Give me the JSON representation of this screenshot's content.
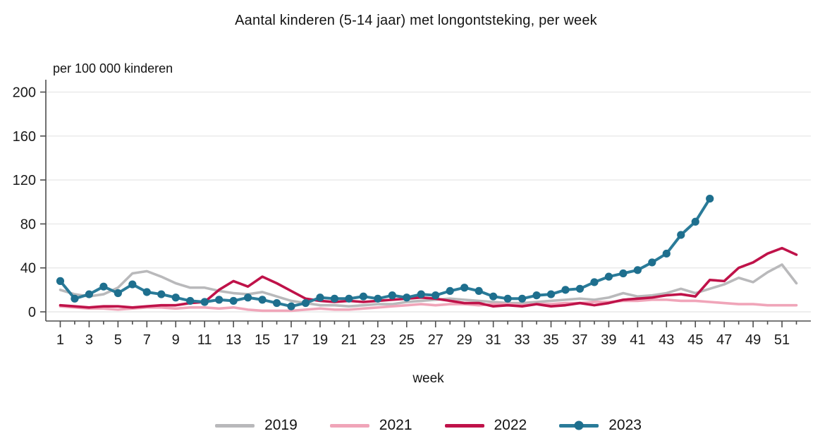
{
  "chart_data": {
    "type": "line",
    "title": "Aantal kinderen (5-14 jaar) met longontsteking, per week",
    "ylabel": "per 100 000 kinderen",
    "xlabel": "week",
    "ylim": [
      0,
      200
    ],
    "yticks": [
      0,
      40,
      80,
      120,
      160,
      200
    ],
    "xlim": [
      0,
      53
    ],
    "xticks": [
      1,
      3,
      5,
      7,
      9,
      11,
      13,
      15,
      17,
      19,
      21,
      23,
      25,
      27,
      29,
      31,
      33,
      35,
      37,
      39,
      41,
      43,
      45,
      47,
      49,
      51
    ],
    "grid": "horizontal",
    "legend_position": "bottom",
    "x": [
      1,
      2,
      3,
      4,
      5,
      6,
      7,
      8,
      9,
      10,
      11,
      12,
      13,
      14,
      15,
      16,
      17,
      18,
      19,
      20,
      21,
      22,
      23,
      24,
      25,
      26,
      27,
      28,
      29,
      30,
      31,
      32,
      33,
      34,
      35,
      36,
      37,
      38,
      39,
      40,
      41,
      42,
      43,
      44,
      45,
      46,
      47,
      48,
      49,
      50,
      51,
      52
    ],
    "series": [
      {
        "name": "2019",
        "color": "#b9b9bb",
        "values": [
          20,
          16,
          14,
          16,
          22,
          35,
          37,
          32,
          26,
          22,
          22,
          19,
          17,
          16,
          18,
          14,
          10,
          8,
          6,
          6,
          5,
          6,
          7,
          7,
          9,
          10,
          11,
          12,
          11,
          10,
          9,
          8,
          8,
          9,
          10,
          11,
          12,
          11,
          13,
          17,
          14,
          15,
          17,
          21,
          17,
          21,
          25,
          31,
          27,
          36,
          43,
          26
        ]
      },
      {
        "name": "2021",
        "color": "#f0a5b9",
        "values": [
          5,
          4,
          3,
          3,
          2,
          3,
          4,
          4,
          3,
          4,
          4,
          3,
          4,
          2,
          1,
          1,
          1,
          2,
          3,
          2,
          2,
          3,
          4,
          5,
          6,
          7,
          6,
          7,
          7,
          6,
          7,
          7,
          6,
          7,
          7,
          8,
          8,
          9,
          9,
          10,
          10,
          11,
          11,
          10,
          10,
          9,
          8,
          7,
          7,
          6,
          6,
          6
        ]
      },
      {
        "name": "2022",
        "color": "#bf1249",
        "values": [
          6,
          5,
          4,
          5,
          5,
          4,
          5,
          6,
          6,
          8,
          9,
          20,
          28,
          23,
          32,
          26,
          19,
          12,
          10,
          9,
          10,
          9,
          10,
          11,
          12,
          13,
          12,
          10,
          8,
          8,
          5,
          6,
          5,
          7,
          5,
          6,
          8,
          6,
          8,
          11,
          12,
          13,
          15,
          16,
          14,
          29,
          28,
          40,
          45,
          53,
          58,
          52
        ]
      },
      {
        "name": "2023",
        "color": "#2a7b99",
        "marker": "circle",
        "marker_color": "#1e6f8e",
        "values": [
          28,
          12,
          16,
          23,
          17,
          25,
          18,
          16,
          13,
          10,
          9,
          11,
          10,
          13,
          11,
          8,
          5,
          8,
          13,
          12,
          12,
          14,
          12,
          15,
          13,
          16,
          15,
          19,
          22,
          19,
          14,
          12,
          12,
          15,
          16,
          20,
          21,
          27,
          32,
          35,
          38,
          45,
          53,
          70,
          82,
          103
        ]
      }
    ]
  }
}
